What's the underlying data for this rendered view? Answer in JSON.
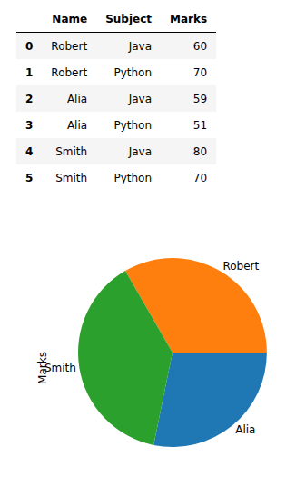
{
  "table": {
    "columns": [
      "Name",
      "Subject",
      "Marks"
    ],
    "rows": [
      [
        0,
        "Robert",
        "Java",
        60
      ],
      [
        1,
        "Robert",
        "Python",
        70
      ],
      [
        2,
        "Alia",
        "Java",
        59
      ],
      [
        3,
        "Alia",
        "Python",
        51
      ],
      [
        4,
        "Smith",
        "Java",
        80
      ],
      [
        5,
        "Smith",
        "Python",
        70
      ]
    ]
  },
  "chart_data": {
    "type": "pie",
    "ylabel": "Marks",
    "categories": [
      "Alia",
      "Robert",
      "Smith"
    ],
    "values": [
      110,
      130,
      150
    ],
    "colors": [
      "#1f77b4",
      "#ff7f0e",
      "#2ca02c"
    ]
  }
}
